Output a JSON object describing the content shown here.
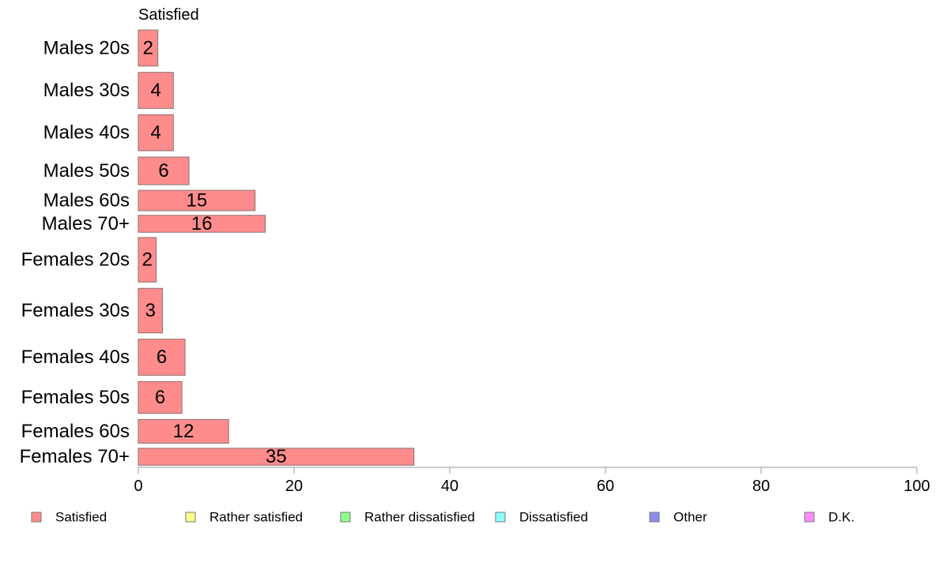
{
  "chart_data": {
    "type": "bar",
    "orientation": "horizontal",
    "stacked": true,
    "series_title": "Satisfied",
    "categories": [
      "Males 20s",
      "Males 30s",
      "Males 40s",
      "Males 50s",
      "Males 60s",
      "Males 70+",
      "Females 20s",
      "Females 30s",
      "Females 40s",
      "Females 50s",
      "Females 60s",
      "Females 70+"
    ],
    "series": [
      {
        "name": "Satisfied",
        "color": "#ff8c8c",
        "values": [
          2.5,
          4.5,
          4.5,
          6.5,
          15,
          16.3,
          2.3,
          3.1,
          6.0,
          5.6,
          11.6,
          35.4
        ],
        "labels": [
          "2",
          "4",
          "4",
          "6",
          "15",
          "16",
          "2",
          "3",
          "6",
          "6",
          "12",
          "35"
        ]
      }
    ],
    "legend": [
      {
        "name": "Satisfied",
        "color": "#ff8c8c"
      },
      {
        "name": "Rather satisfied",
        "color": "#ffff8c"
      },
      {
        "name": "Rather dissatisfied",
        "color": "#8cff8c"
      },
      {
        "name": "Dissatisfied",
        "color": "#8cffff"
      },
      {
        "name": "Other",
        "color": "#8c8cf0"
      },
      {
        "name": "D.K.",
        "color": "#ff8cff"
      }
    ],
    "legend_position": "bottom",
    "xlim": [
      0,
      100
    ],
    "xticks": [
      0,
      20,
      40,
      60,
      80,
      100
    ],
    "grid": false,
    "bar_weights": [
      1.0,
      1.0,
      1.0,
      0.8,
      0.6,
      0.5,
      1.2,
      1.2,
      1.0,
      0.9,
      0.7,
      0.5
    ]
  }
}
